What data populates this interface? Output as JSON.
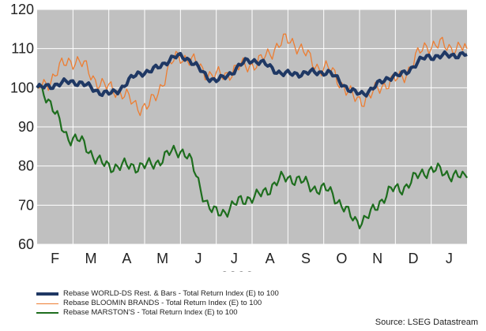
{
  "chart_data": {
    "type": "line",
    "xlabel": "2023",
    "x_ticks": [
      "F",
      "M",
      "A",
      "M",
      "J",
      "J",
      "A",
      "S",
      "O",
      "N",
      "D",
      "J"
    ],
    "y_ticks": [
      60,
      70,
      80,
      90,
      100,
      110,
      120
    ],
    "ylim": [
      60,
      120
    ],
    "grid": true,
    "legend_position": "bottom-left",
    "source": "Source: LSEG Datastream",
    "x": [
      "Jan-23",
      "Feb-23",
      "Mar-23",
      "Apr-23",
      "May-23",
      "Jun-23",
      "Jul-23",
      "Aug-23",
      "Sep-23",
      "Oct-23",
      "Nov-23",
      "Dec-23",
      "Jan-24"
    ],
    "series": [
      {
        "name": "Rebase WORLD-DS Rest. & Bars - Total Return Index (E) to 100",
        "color": "#1f3864",
        "values": [
          100,
          101.5,
          98.5,
          104,
          108,
          102,
          107,
          103.5,
          104,
          98.5,
          103,
          108,
          108.5
        ]
      },
      {
        "name": "Rebase BLOOMIN BRANDS - Total Return Index (E) to 100",
        "color": "#ed7d31",
        "values": [
          100,
          107,
          100,
          95,
          108,
          103,
          106,
          112,
          105,
          97,
          102,
          111,
          110
        ]
      },
      {
        "name": "Rebase MARSTON'S - Total Return Index (E) to 100",
        "color": "#1e6e1e",
        "values": [
          100,
          87,
          80,
          80,
          84,
          68,
          72,
          77,
          74,
          66,
          74,
          79,
          77
        ]
      }
    ]
  }
}
